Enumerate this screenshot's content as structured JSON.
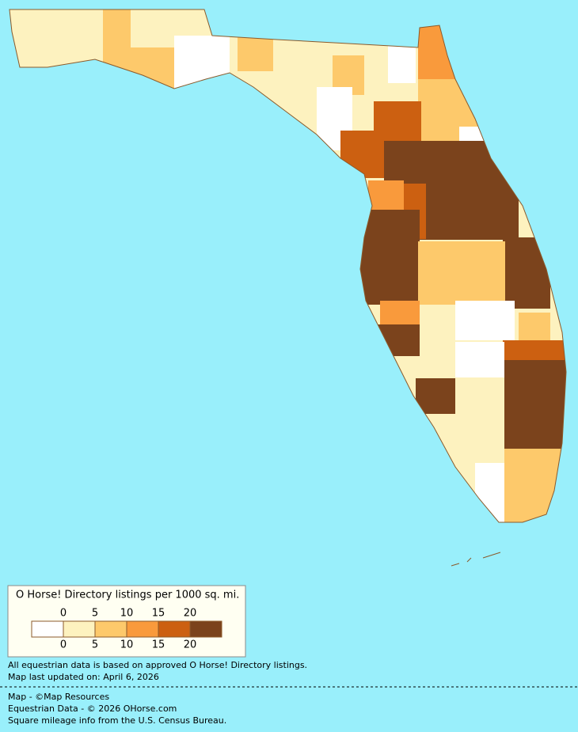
{
  "legend": {
    "title": "O Horse! Directory listings per 1000 sq. mi.",
    "top_labels": [
      "0",
      "5",
      "10",
      "15",
      "20"
    ],
    "bottom_labels": [
      "0",
      "5",
      "10",
      "15",
      "20"
    ],
    "colors": [
      "#ffffff",
      "#fdf2bf",
      "#fdc96b",
      "#f99a3c",
      "#cc6011",
      "#7b431c"
    ]
  },
  "notes": [
    "All equestrian data is based on approved O Horse! Directory listings.",
    "Map last updated on: April 6, 2026"
  ],
  "credits": [
    "Map - ©Map Resources",
    "Equestrian Data - © 2026 OHorse.com",
    "Square mileage info from the U.S. Census Bureau."
  ]
}
